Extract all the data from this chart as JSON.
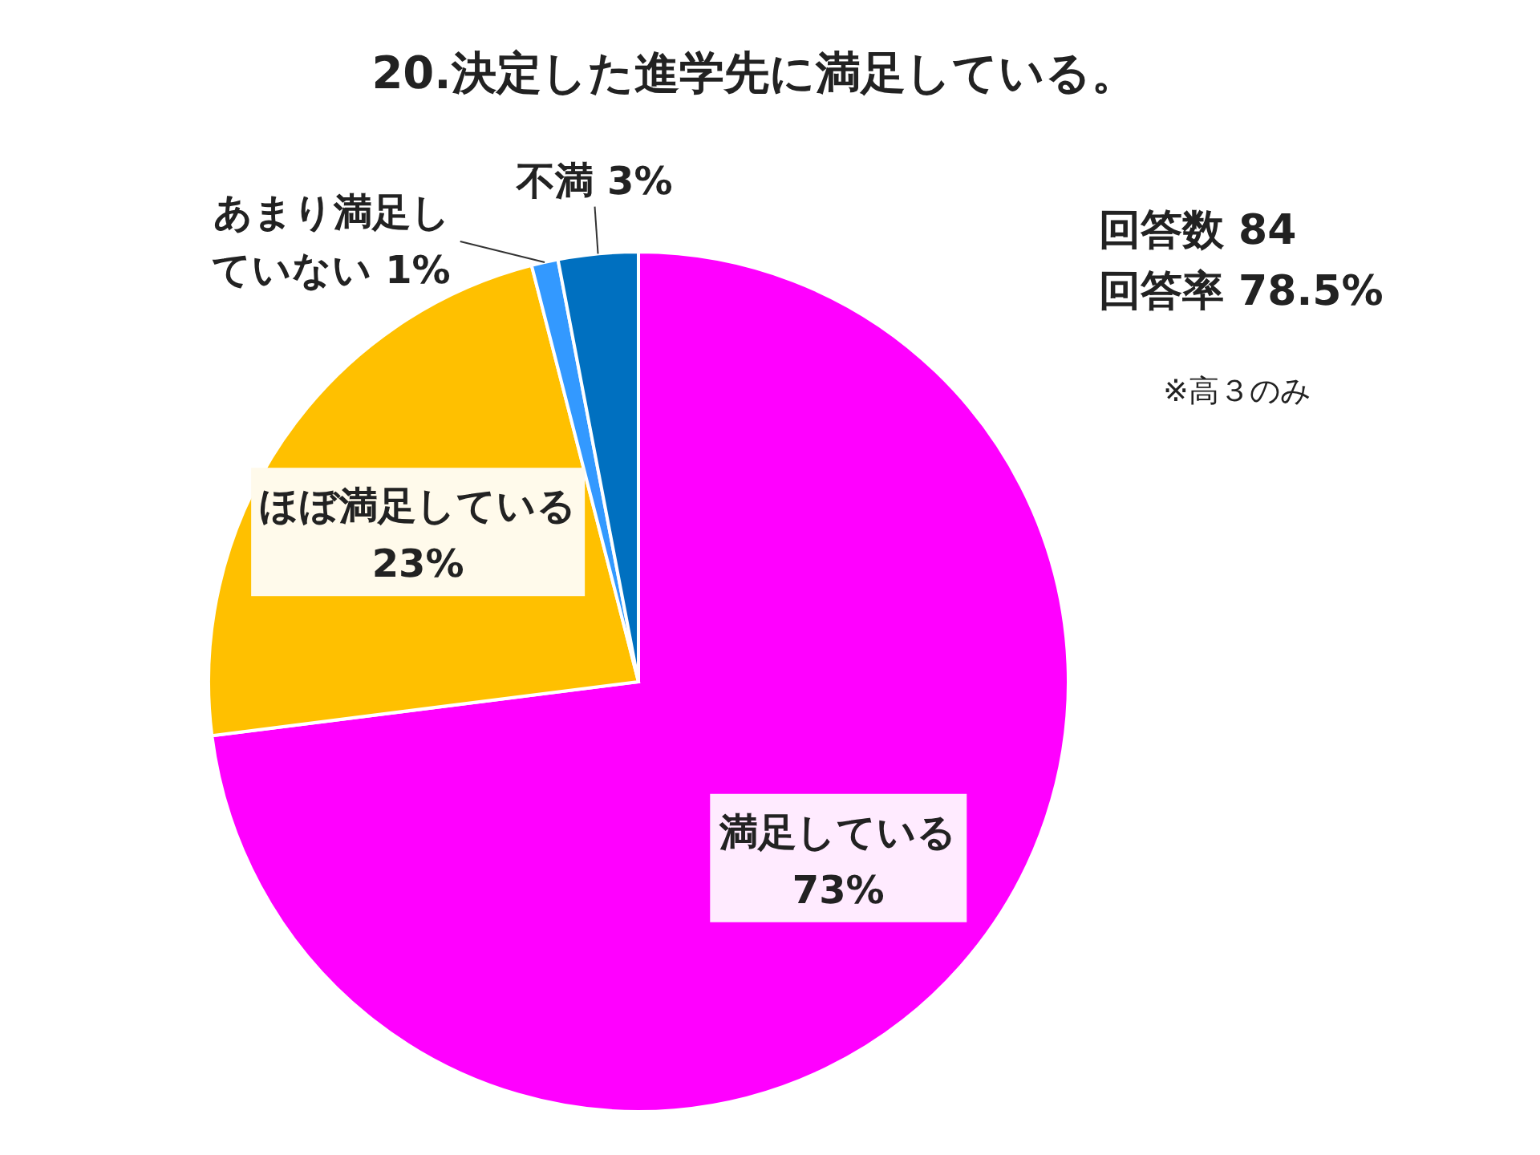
{
  "chart_data": {
    "type": "pie",
    "title": "20.決定した進学先に満足している。",
    "categories": [
      "満足している",
      "ほぼ満足している",
      "あまり満足していない",
      "不満"
    ],
    "values": [
      73,
      23,
      1,
      3
    ],
    "colors": [
      "#ff00ff",
      "#ffc000",
      "#3399ff",
      "#0070c0"
    ],
    "value_labels": [
      "73%",
      "23%",
      "1%",
      "3%"
    ],
    "annotations": [
      "回答数 84",
      "回答率 78.5%",
      "※高３のみ"
    ]
  }
}
